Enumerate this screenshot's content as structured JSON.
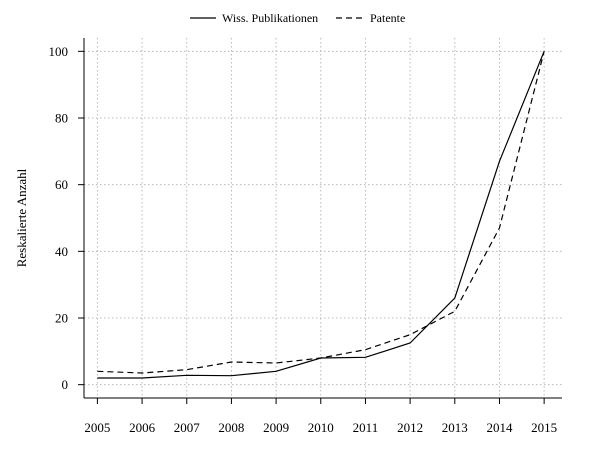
{
  "chart_data": {
    "type": "line",
    "title": "",
    "xlabel": "",
    "ylabel": "Reskalierte Anzahl",
    "x": [
      2005,
      2006,
      2007,
      2008,
      2009,
      2010,
      2011,
      2012,
      2013,
      2014,
      2015
    ],
    "xticks": [
      "2005",
      "2006",
      "2007",
      "2008",
      "2009",
      "2010",
      "2011",
      "2012",
      "2013",
      "2014",
      "2015"
    ],
    "yticks": [
      "0",
      "20",
      "40",
      "60",
      "80",
      "100"
    ],
    "ylim": [
      -4,
      104
    ],
    "xlim": [
      2004.7,
      2015.4
    ],
    "grid": true,
    "legend_position": "top",
    "series": [
      {
        "name": "Wiss. Publikationen",
        "dash": "solid",
        "values": [
          2,
          2,
          2.8,
          2.7,
          4,
          8,
          8.2,
          12.5,
          26,
          67,
          100
        ]
      },
      {
        "name": "Patente",
        "dash": "dashed",
        "values": [
          4,
          3.5,
          4.5,
          6.8,
          6.5,
          8,
          10.5,
          15,
          22,
          47,
          100
        ]
      }
    ]
  }
}
